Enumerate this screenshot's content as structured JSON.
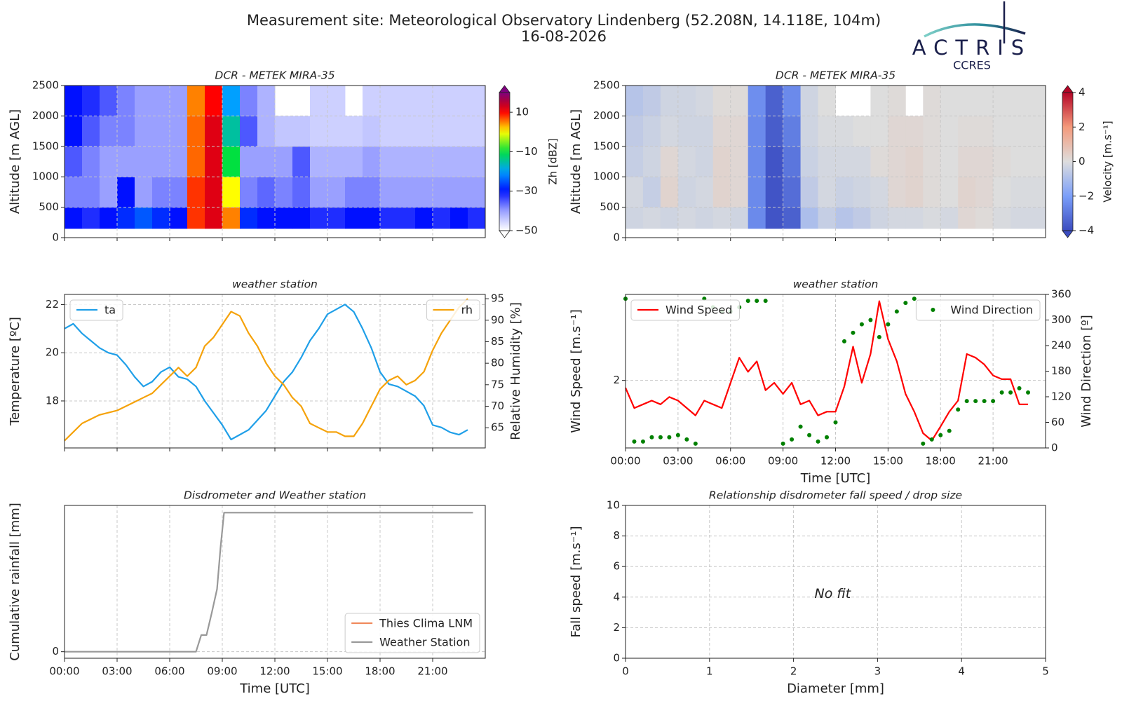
{
  "title": "Measurement site: Meteorological Observatory Lindenberg (52.208N, 14.118E, 104m)",
  "date": "16-08-2026",
  "logo": {
    "name": "ACTRIS",
    "subtitle": "CCRES"
  },
  "chart_data": [
    {
      "type": "heatmap",
      "title": "DCR - METEK MIRA-35",
      "ylabel": "Altitude [m AGL]",
      "zlabel": "Zh [dBZ]",
      "colormap": "jet-white",
      "xlim": [
        0,
        24
      ],
      "xticks": [
        0,
        3,
        6,
        9,
        12,
        15,
        18,
        21
      ],
      "xticklabels": false,
      "ylim": [
        0,
        2500
      ],
      "yticks": [
        0,
        500,
        1000,
        1500,
        2000,
        2500
      ],
      "grid": true,
      "zlim": [
        -50,
        20
      ],
      "zticks": [
        {
          "value": -50,
          "label": "−50"
        },
        {
          "value": -30,
          "label": "−30"
        },
        {
          "value": -10,
          "label": "−10"
        },
        10
      ],
      "x_edges": [
        0,
        1,
        2,
        3,
        4,
        5,
        6,
        7,
        8,
        9,
        10,
        11,
        12,
        13,
        14,
        15,
        16,
        17,
        18,
        19,
        20,
        21,
        22,
        23,
        24
      ],
      "y_edges": [
        150,
        500,
        1000,
        1500,
        2000,
        2500
      ],
      "z": [
        [
          -30,
          -32,
          -30,
          -28,
          -25,
          -28,
          -30,
          8,
          12,
          5,
          -28,
          -30,
          -30,
          -30,
          -32,
          -32,
          -30,
          -30,
          -32,
          -32,
          -30,
          -32,
          -30,
          -32
        ],
        [
          -38,
          -38,
          -40,
          -30,
          -40,
          -38,
          -38,
          8,
          12,
          0,
          -38,
          -36,
          -38,
          -36,
          -40,
          -40,
          -38,
          -38,
          -40,
          -40,
          -40,
          -40,
          -40,
          -40
        ],
        [
          -35,
          -38,
          -40,
          -40,
          -40,
          -40,
          -40,
          6,
          12,
          -10,
          -40,
          -40,
          -40,
          -35,
          -42,
          -42,
          -42,
          -40,
          -42,
          -42,
          -42,
          -42,
          -42,
          -42
        ],
        [
          -30,
          -35,
          -38,
          -38,
          -40,
          -40,
          -40,
          6,
          12,
          -15,
          -35,
          -42,
          -44,
          -44,
          -45,
          -45,
          -45,
          -44,
          -45,
          -45,
          -45,
          -45,
          -45,
          -45
        ],
        [
          -30,
          -32,
          -35,
          -38,
          -40,
          -40,
          -40,
          5,
          10,
          -20,
          -38,
          -42,
          null,
          null,
          -45,
          -45,
          null,
          -45,
          -45,
          -45,
          -45,
          -45,
          -45,
          -45
        ]
      ]
    },
    {
      "type": "heatmap",
      "title": "DCR - METEK MIRA-35",
      "ylabel": "Altitude [m AGL]",
      "zlabel": "Velocity [m.s⁻¹]",
      "colormap": "coolwarm",
      "xlim": [
        0,
        24
      ],
      "xticks": [
        0,
        3,
        6,
        9,
        12,
        15,
        18,
        21
      ],
      "xticklabels": false,
      "ylim": [
        0,
        2500
      ],
      "yticks": [
        0,
        500,
        1000,
        1500,
        2000,
        2500
      ],
      "grid": true,
      "zlim": [
        -4,
        4
      ],
      "zticks": [
        {
          "value": -4,
          "label": "−4"
        },
        {
          "value": -2,
          "label": "−2"
        },
        0,
        2,
        4
      ],
      "x_edges": [
        0,
        1,
        2,
        3,
        4,
        5,
        6,
        7,
        8,
        9,
        10,
        11,
        12,
        13,
        14,
        15,
        16,
        17,
        18,
        19,
        20,
        21,
        22,
        23,
        24
      ],
      "y_edges": [
        150,
        500,
        1000,
        1500,
        2000,
        2500
      ],
      "z": [
        [
          -0.3,
          -0.2,
          -0.3,
          -0.2,
          -0.3,
          -0.2,
          -0.3,
          -2.5,
          -3.8,
          -3.5,
          -1.0,
          -0.5,
          -0.8,
          -0.6,
          -0.3,
          -0.2,
          -0.2,
          -0.1,
          -0.2,
          0.2,
          0.1,
          -0.1,
          -0.2,
          -0.2
        ],
        [
          -0.2,
          -0.5,
          0.3,
          -0.3,
          -0.2,
          0.3,
          0.2,
          -2.5,
          -3.8,
          -3.2,
          -0.6,
          -0.2,
          -0.4,
          -0.3,
          -0.2,
          0.2,
          0.3,
          0.1,
          0.0,
          0.3,
          0.2,
          0.0,
          -0.1,
          -0.1
        ],
        [
          -0.5,
          -0.3,
          0.2,
          -0.2,
          -0.3,
          0.3,
          0.2,
          -2.5,
          -3.8,
          -3.0,
          -0.4,
          -0.2,
          -0.2,
          -0.2,
          0.1,
          0.2,
          0.3,
          0.1,
          0.0,
          0.2,
          0.2,
          0.1,
          0.0,
          0.0
        ],
        [
          -0.6,
          -0.4,
          -0.2,
          -0.3,
          -0.3,
          0.2,
          0.2,
          -2.5,
          -3.6,
          -2.8,
          -0.3,
          -0.1,
          -0.1,
          0.0,
          0.0,
          0.2,
          0.2,
          0.1,
          0.0,
          0.1,
          0.1,
          0.0,
          0.0,
          0.0
        ],
        [
          -0.8,
          -0.6,
          -0.3,
          -0.3,
          -0.2,
          0.1,
          0.1,
          -2.4,
          -3.5,
          -2.5,
          -0.3,
          0.0,
          null,
          null,
          0.0,
          0.1,
          null,
          0.1,
          0.0,
          0.0,
          0.0,
          0.0,
          0.0,
          0.0
        ]
      ]
    },
    {
      "type": "line",
      "title": "weather station",
      "ylabel": "Temperature [ºC]",
      "y2label": "Relative Humidity [%]",
      "xlim": [
        0,
        24
      ],
      "xticks": [
        0,
        3,
        6,
        9,
        12,
        15,
        18,
        21
      ],
      "xticklabels": false,
      "ylim": [
        16.05,
        22.42
      ],
      "yticks": [
        18,
        20,
        22
      ],
      "y2lim": [
        60.3,
        96
      ],
      "y2ticks": [
        65,
        70,
        75,
        80,
        85,
        90,
        95
      ],
      "grid": true,
      "x": [
        0,
        0.5,
        1,
        1.5,
        2,
        2.5,
        3,
        3.5,
        4,
        4.5,
        5,
        5.5,
        6,
        6.5,
        7,
        7.5,
        8,
        8.5,
        9,
        9.5,
        10,
        10.5,
        11,
        11.5,
        12,
        12.5,
        13,
        13.5,
        14,
        14.5,
        15,
        15.5,
        16,
        16.5,
        17,
        17.5,
        18,
        18.5,
        19,
        19.5,
        20,
        20.5,
        21,
        21.5,
        22,
        22.5,
        23
      ],
      "series": [
        {
          "name": "ta",
          "color": "#1f9fe8",
          "kind": "line",
          "legend": "upper left",
          "values": [
            21.0,
            21.2,
            20.8,
            20.5,
            20.2,
            20.0,
            19.9,
            19.5,
            19.0,
            18.6,
            18.8,
            19.2,
            19.4,
            19.0,
            18.9,
            18.6,
            18.0,
            17.5,
            17.0,
            16.4,
            16.6,
            16.8,
            17.2,
            17.6,
            18.2,
            18.8,
            19.2,
            19.8,
            20.5,
            21.0,
            21.6,
            21.8,
            22.0,
            21.7,
            21.0,
            20.2,
            19.2,
            18.7,
            18.6,
            18.4,
            18.2,
            17.8,
            17.0,
            16.9,
            16.7,
            16.6,
            16.8
          ]
        },
        {
          "name": "rh",
          "color": "#f5a20a",
          "kind": "line",
          "axis": "y2",
          "legend": "upper right",
          "values": [
            62,
            64,
            66,
            67,
            68,
            68.5,
            69,
            70,
            71,
            72,
            73,
            75,
            77,
            79,
            77,
            79,
            84,
            86,
            89,
            92,
            91,
            87,
            84,
            80,
            77,
            75,
            72,
            70,
            66,
            65,
            64,
            64,
            63,
            63,
            66,
            70,
            74,
            76,
            77,
            75,
            76,
            78,
            83,
            87,
            90,
            93,
            95
          ]
        }
      ]
    },
    {
      "type": "line",
      "title": "weather station",
      "xlabel": "Time [UTC]",
      "ylabel": "Wind Speed [m.s⁻¹]",
      "y2label": "Wind Direction [º]",
      "xlim": [
        0,
        24
      ],
      "xticks": [
        {
          "value": 0,
          "label": "00:00"
        },
        {
          "value": 3,
          "label": "03:00"
        },
        {
          "value": 6,
          "label": "06:00"
        },
        {
          "value": 9,
          "label": "09:00"
        },
        {
          "value": 12,
          "label": "12:00"
        },
        {
          "value": 15,
          "label": "15:00"
        },
        {
          "value": 18,
          "label": "18:00"
        },
        {
          "value": 21,
          "label": "21:00"
        }
      ],
      "ylim": [
        0.9,
        3.4
      ],
      "yticks": [
        2
      ],
      "y2lim": [
        0,
        360
      ],
      "y2ticks": [
        0,
        60,
        120,
        180,
        240,
        300,
        360
      ],
      "grid": true,
      "x": [
        0,
        0.5,
        1,
        1.5,
        2,
        2.5,
        3,
        3.5,
        4,
        4.5,
        5,
        5.5,
        6,
        6.5,
        7,
        7.5,
        8,
        8.5,
        9,
        9.5,
        10,
        10.5,
        11,
        11.5,
        12,
        12.5,
        13,
        13.5,
        14,
        14.5,
        15,
        15.5,
        16,
        16.5,
        17,
        17.5,
        18,
        18.5,
        19,
        19.5,
        20,
        20.5,
        21,
        21.5,
        22,
        22.5,
        23
      ],
      "series": [
        {
          "name": "Wind Speed",
          "color": "#ff0000",
          "kind": "line",
          "legend": "upper left",
          "values": [
            1.88,
            1.55,
            1.61,
            1.67,
            1.61,
            1.73,
            1.67,
            1.55,
            1.43,
            1.67,
            1.61,
            1.55,
            1.96,
            2.37,
            2.14,
            2.31,
            1.84,
            1.96,
            1.78,
            1.96,
            1.61,
            1.67,
            1.43,
            1.49,
            1.49,
            1.9,
            2.55,
            1.96,
            2.43,
            3.29,
            2.67,
            2.31,
            1.78,
            1.49,
            1.14,
            1.02,
            1.25,
            1.49,
            1.67,
            2.43,
            2.37,
            2.26,
            2.08,
            2.02,
            2.02,
            1.61,
            1.61
          ]
        },
        {
          "name": "Wind Direction",
          "color": "#008000",
          "kind": "scatter",
          "axis": "y2",
          "legend": "upper right",
          "values": [
            350,
            15,
            15,
            25,
            25,
            25,
            30,
            20,
            10,
            350,
            330,
            320,
            320,
            330,
            345,
            345,
            345,
            null,
            10,
            20,
            50,
            30,
            15,
            25,
            60,
            250,
            270,
            290,
            300,
            260,
            290,
            320,
            340,
            350,
            10,
            20,
            30,
            40,
            90,
            110,
            110,
            110,
            110,
            130,
            130,
            140,
            130
          ]
        }
      ]
    },
    {
      "type": "line",
      "title": "Disdrometer and Weather station",
      "xlabel": "Time [UTC]",
      "ylabel": "Cumulative rainfall [mm]",
      "xlim": [
        0,
        24
      ],
      "xticks": [
        {
          "value": 0,
          "label": "00:00"
        },
        {
          "value": 3,
          "label": "03:00"
        },
        {
          "value": 6,
          "label": "06:00"
        },
        {
          "value": 9,
          "label": "09:00"
        },
        {
          "value": 12,
          "label": "12:00"
        },
        {
          "value": 15,
          "label": "15:00"
        },
        {
          "value": 18,
          "label": "18:00"
        },
        {
          "value": 21,
          "label": "21:00"
        }
      ],
      "ylim": [
        -0.47,
        10.52
      ],
      "yticks": [
        0
      ],
      "grid": true,
      "series": [
        {
          "name": "Thies Clima LNM",
          "color": "#f08a5d",
          "kind": "line",
          "legend": "lower right",
          "x": [],
          "values": []
        },
        {
          "name": "Weather Station",
          "color": "#999999",
          "kind": "line",
          "legend": "lower right",
          "x": [
            0,
            7.5,
            7.8,
            8.1,
            8.4,
            8.7,
            8.9,
            9.1,
            23.3
          ],
          "values": [
            0,
            0,
            1.2,
            1.2,
            2.8,
            4.5,
            7.5,
            10,
            10
          ]
        }
      ]
    },
    {
      "type": "scatter",
      "title": "Relationship disdrometer fall speed / drop size",
      "xlabel": "Diameter [mm]",
      "ylabel": "Fall speed [m.s⁻¹]",
      "xlim": [
        0,
        5
      ],
      "xticks": [
        0,
        1,
        2,
        3,
        4,
        5
      ],
      "ylim": [
        0,
        10
      ],
      "yticks": [
        0,
        2,
        4,
        6,
        8,
        10
      ],
      "grid": true,
      "annotation": "No fit",
      "series": []
    }
  ]
}
